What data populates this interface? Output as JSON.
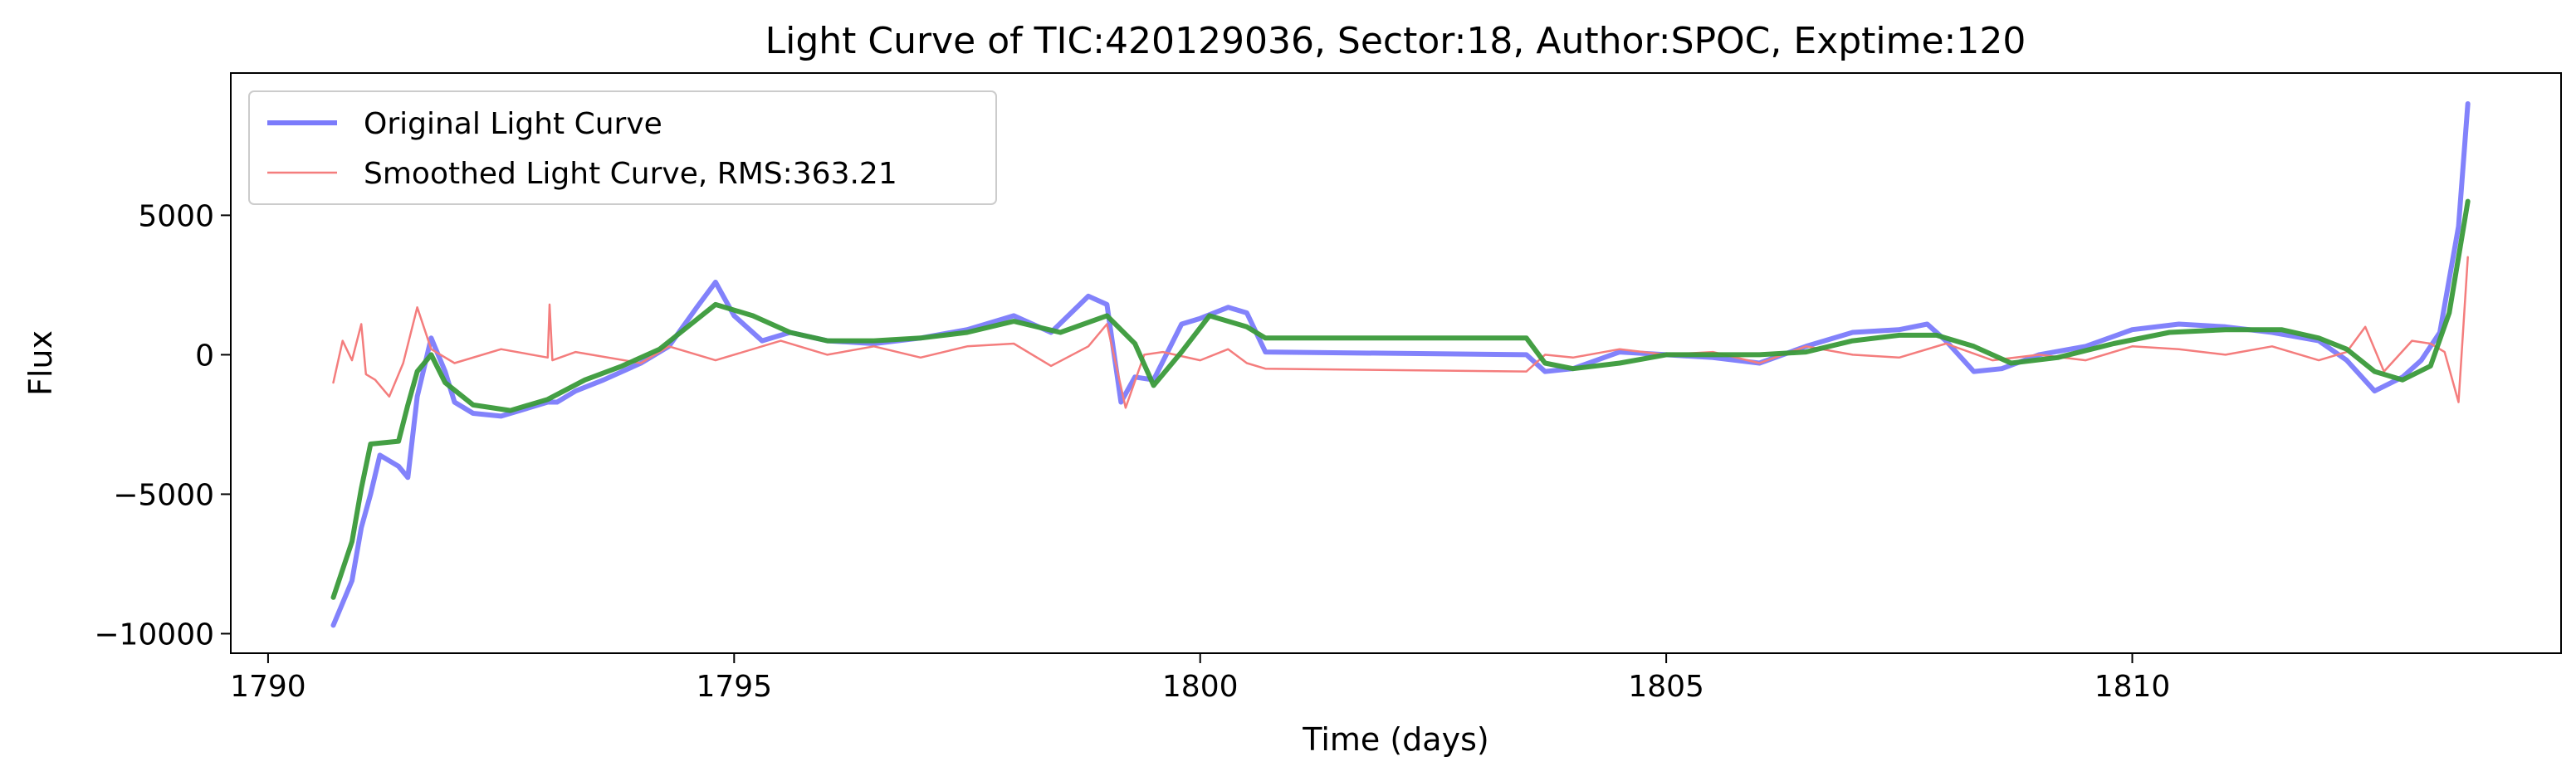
{
  "chart_data": {
    "type": "line",
    "title": "Light Curve of TIC:420129036, Sector:18, Author:SPOC, Exptime:120",
    "xlabel": "Time (days)",
    "ylabel": "Flux",
    "xlim": [
      1789.6,
      1814.6
    ],
    "ylim": [
      -10700,
      10100
    ],
    "xticks": [
      1790,
      1795,
      1800,
      1805,
      1810
    ],
    "xtick_labels": [
      "1790",
      "1795",
      "1800",
      "1805",
      "1810"
    ],
    "yticks": [
      -10000,
      -5000,
      0,
      5000
    ],
    "ytick_labels": [
      "−10000",
      "−5000",
      "0",
      "5000"
    ],
    "grid": false,
    "legend_position": "top-left",
    "series": [
      {
        "name": "Original Light Curve",
        "color": "#7b7bfb",
        "x": [
          1790.7,
          1790.9,
          1791.0,
          1791.1,
          1791.2,
          1791.4,
          1791.5,
          1791.6,
          1791.75,
          1791.9,
          1792.0,
          1792.2,
          1792.5,
          1792.8,
          1793.0,
          1793.1,
          1793.3,
          1793.6,
          1794.0,
          1794.3,
          1794.6,
          1794.8,
          1795.0,
          1795.3,
          1795.6,
          1796.0,
          1796.5,
          1797.0,
          1797.5,
          1798.0,
          1798.4,
          1798.8,
          1799.0,
          1799.15,
          1799.3,
          1799.5,
          1799.8,
          1800.0,
          1800.3,
          1800.5,
          1800.7,
          1803.5,
          1803.7,
          1804.0,
          1804.5,
          1805.0,
          1805.5,
          1806.0,
          1806.5,
          1807.0,
          1807.5,
          1807.8,
          1808.0,
          1808.3,
          1808.6,
          1809.0,
          1809.5,
          1810.0,
          1810.5,
          1811.0,
          1811.5,
          1812.0,
          1812.3,
          1812.6,
          1812.9,
          1813.1,
          1813.3,
          1813.5,
          1813.6
        ],
        "y": [
          -9700,
          -8100,
          -6200,
          -5000,
          -3600,
          -4000,
          -4400,
          -1500,
          600,
          -600,
          -1700,
          -2100,
          -2200,
          -1900,
          -1700,
          -1700,
          -1300,
          -900,
          -300,
          300,
          1700,
          2600,
          1400,
          500,
          800,
          500,
          400,
          600,
          900,
          1400,
          800,
          2100,
          1800,
          -1700,
          -800,
          -900,
          1100,
          1300,
          1700,
          1500,
          100,
          0,
          -600,
          -500,
          100,
          0,
          -100,
          -300,
          300,
          800,
          900,
          1100,
          500,
          -600,
          -500,
          0,
          300,
          900,
          1100,
          1000,
          800,
          500,
          -200,
          -1300,
          -800,
          -200,
          800,
          4600,
          9000
        ]
      },
      {
        "name": "Smoothed Light Curve, RMS:363.21",
        "color": "#f47d7d",
        "x": [
          1790.7,
          1790.8,
          1790.9,
          1791.0,
          1791.05,
          1791.15,
          1791.3,
          1791.45,
          1791.6,
          1791.75,
          1792.0,
          1792.5,
          1793.0,
          1793.02,
          1793.05,
          1793.3,
          1794.0,
          1794.3,
          1794.8,
          1795.5,
          1796.0,
          1796.5,
          1797.0,
          1797.5,
          1798.0,
          1798.4,
          1798.8,
          1799.0,
          1799.2,
          1799.4,
          1799.6,
          1800.0,
          1800.3,
          1800.5,
          1800.7,
          1803.5,
          1803.7,
          1804.0,
          1804.5,
          1805.0,
          1805.5,
          1806.0,
          1806.5,
          1807.0,
          1807.5,
          1808.0,
          1808.5,
          1809.0,
          1809.5,
          1810.0,
          1810.5,
          1811.0,
          1811.5,
          1812.0,
          1812.3,
          1812.5,
          1812.7,
          1813.0,
          1813.2,
          1813.35,
          1813.5,
          1813.6
        ],
        "y": [
          -1000,
          500,
          -200,
          1100,
          -700,
          -900,
          -1500,
          -300,
          1700,
          200,
          -300,
          200,
          -100,
          1800,
          -200,
          100,
          -300,
          300,
          -200,
          500,
          0,
          300,
          -100,
          300,
          400,
          -400,
          300,
          1100,
          -1900,
          0,
          100,
          -200,
          200,
          -300,
          -500,
          -600,
          0,
          -100,
          200,
          0,
          100,
          -300,
          300,
          0,
          -100,
          400,
          -200,
          0,
          -200,
          300,
          200,
          0,
          300,
          -200,
          100,
          1000,
          -600,
          500,
          400,
          100,
          -1700,
          3500
        ]
      },
      {
        "name": "",
        "color": "#3a9a3a",
        "x": [
          1790.7,
          1790.9,
          1791.0,
          1791.1,
          1791.4,
          1791.5,
          1791.6,
          1791.75,
          1791.9,
          1792.2,
          1792.6,
          1793.0,
          1793.4,
          1793.8,
          1794.2,
          1794.5,
          1794.8,
          1795.2,
          1795.6,
          1796.0,
          1796.5,
          1797.0,
          1797.5,
          1798.0,
          1798.5,
          1799.0,
          1799.3,
          1799.5,
          1799.8,
          1800.1,
          1800.5,
          1800.7,
          1803.5,
          1803.7,
          1804.0,
          1804.5,
          1805.0,
          1805.5,
          1806.0,
          1806.5,
          1807.0,
          1807.5,
          1807.9,
          1808.3,
          1808.7,
          1809.2,
          1809.8,
          1810.4,
          1811.0,
          1811.6,
          1812.0,
          1812.3,
          1812.6,
          1812.9,
          1813.2,
          1813.4,
          1813.6
        ],
        "y": [
          -8700,
          -6700,
          -4800,
          -3200,
          -3100,
          -1800,
          -600,
          0,
          -1000,
          -1800,
          -2000,
          -1600,
          -900,
          -400,
          200,
          1000,
          1800,
          1400,
          800,
          500,
          500,
          600,
          800,
          1200,
          800,
          1400,
          400,
          -1100,
          100,
          1400,
          1000,
          600,
          600,
          -300,
          -500,
          -300,
          0,
          0,
          0,
          100,
          500,
          700,
          700,
          300,
          -300,
          -100,
          400,
          800,
          900,
          900,
          600,
          200,
          -600,
          -900,
          -400,
          1500,
          5500
        ]
      }
    ]
  }
}
